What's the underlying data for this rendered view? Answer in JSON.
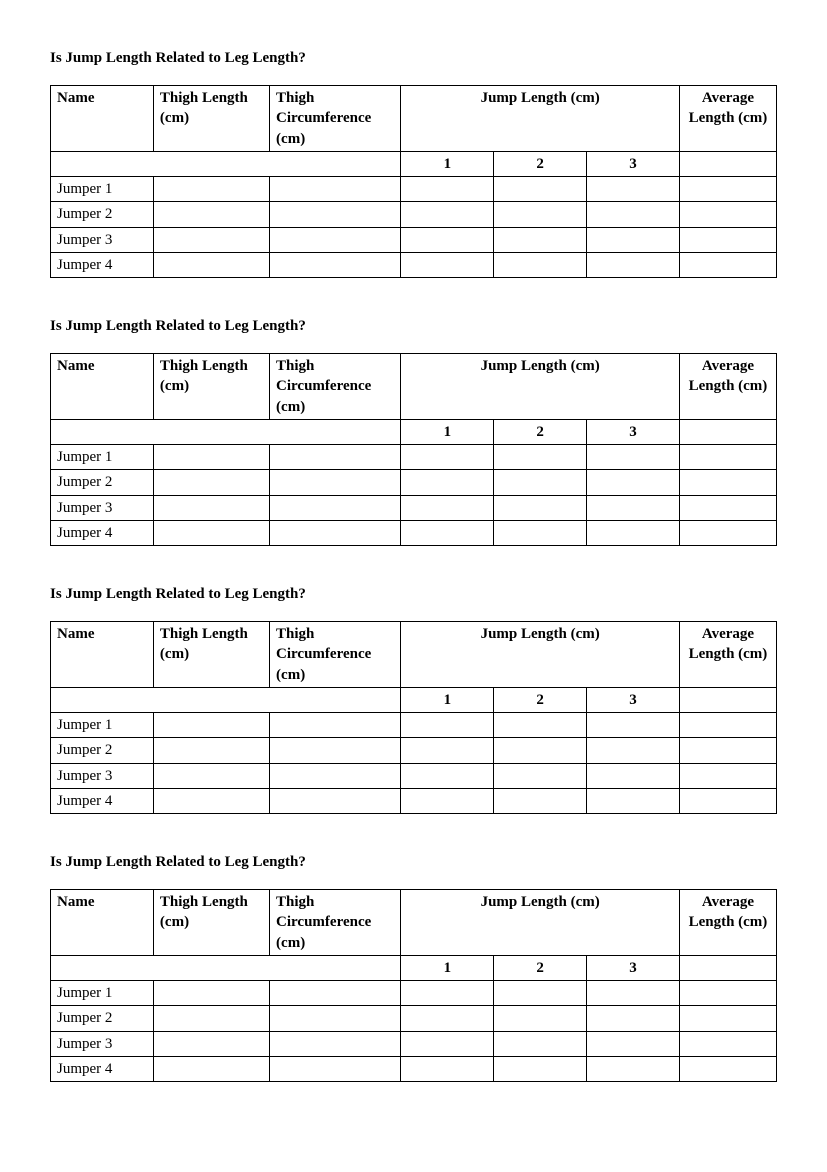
{
  "title": "Is Jump Length Related to Leg Length?",
  "headers": {
    "name": "Name",
    "thigh_length": "Thigh Length (cm)",
    "thigh_circ": "Thigh Circumference (cm)",
    "jump_length": "Jump Length (cm)",
    "avg_length": "Average Length (cm)",
    "trial1": "1",
    "trial2": "2",
    "trial3": "3"
  },
  "rows": [
    "Jumper 1",
    "Jumper 2",
    "Jumper 3",
    "Jumper 4"
  ],
  "section_count": 4,
  "colors": {
    "text": "#000000",
    "background": "#ffffff",
    "border": "#000000"
  },
  "typography": {
    "font_family": "Comic Sans MS",
    "title_fontsize": 15,
    "cell_fontsize": 15
  }
}
